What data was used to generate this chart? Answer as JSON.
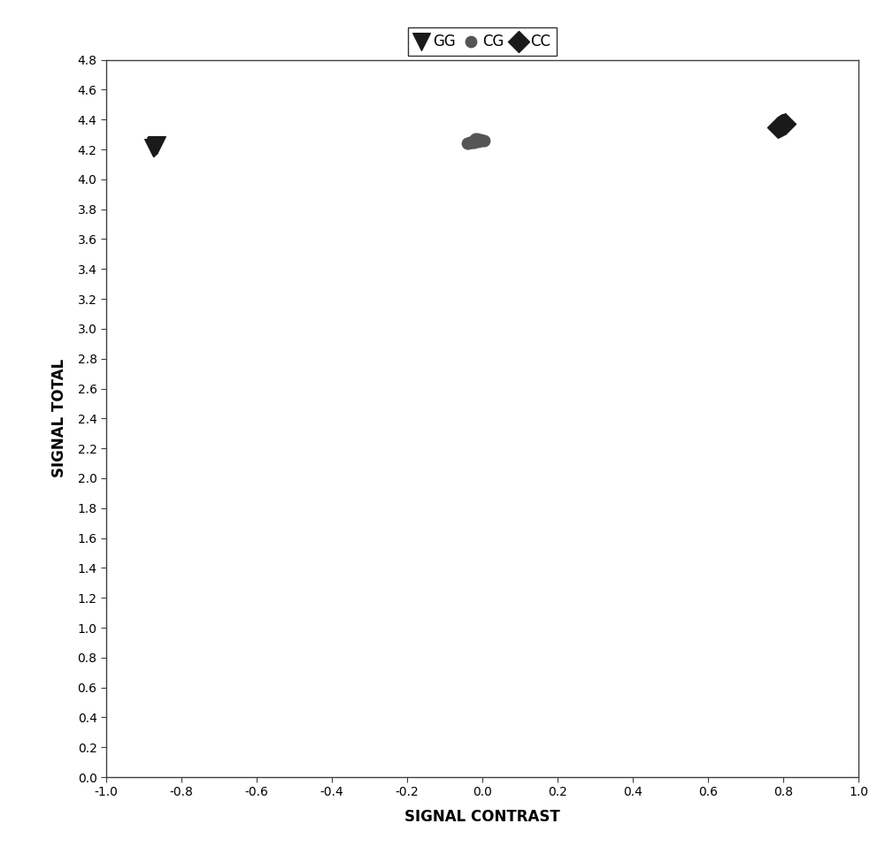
{
  "GG": {
    "x": [
      -0.872,
      -0.868,
      -0.875,
      -0.865
    ],
    "y": [
      4.215,
      4.225,
      4.21,
      4.23
    ],
    "color": "#1a1a1a",
    "marker": "v",
    "size": 200,
    "label": "GG"
  },
  "CG": {
    "x": [
      -0.028,
      -0.012,
      -0.033,
      -0.005,
      -0.02,
      -0.015,
      -0.038,
      -0.008,
      -0.024,
      -0.018,
      -0.01,
      -0.03,
      0.002,
      -0.025,
      0.005,
      -0.04,
      -0.016,
      -0.022
    ],
    "y": [
      4.25,
      4.26,
      4.245,
      4.268,
      4.255,
      4.272,
      4.242,
      4.265,
      4.248,
      4.27,
      4.255,
      4.245,
      4.262,
      4.252,
      4.258,
      4.24,
      4.268,
      4.25
    ],
    "color": "#555555",
    "marker": "o",
    "size": 80,
    "label": "CG"
  },
  "CC": {
    "x": [
      0.79,
      0.798,
      0.785,
      0.805,
      0.795,
      0.8,
      0.792
    ],
    "y": [
      4.355,
      4.365,
      4.35,
      4.37,
      4.36,
      4.368,
      4.358
    ],
    "color": "#1a1a1a",
    "marker": "D",
    "size": 150,
    "label": "CC"
  },
  "xlim": [
    -1.0,
    1.0
  ],
  "ylim": [
    0.0,
    4.8
  ],
  "xlabel": "SIGNAL CONTRAST",
  "ylabel": "SIGNAL TOTAL",
  "xticks": [
    -1.0,
    -0.8,
    -0.6,
    -0.4,
    -0.2,
    0.0,
    0.2,
    0.4,
    0.6,
    0.8,
    1.0
  ],
  "yticks": [
    0.0,
    0.2,
    0.4,
    0.6,
    0.8,
    1.0,
    1.2,
    1.4,
    1.6,
    1.8,
    2.0,
    2.2,
    2.4,
    2.6,
    2.8,
    3.0,
    3.2,
    3.4,
    3.6,
    3.8,
    4.0,
    4.2,
    4.4,
    4.6,
    4.8
  ],
  "background_color": "#ffffff",
  "plot_bg_color": "#ffffff",
  "legend_fontsize": 12,
  "axis_label_fontsize": 12,
  "tick_fontsize": 10,
  "spine_color": "#404040",
  "figsize": [
    10.0,
    9.66
  ],
  "dpi": 100
}
